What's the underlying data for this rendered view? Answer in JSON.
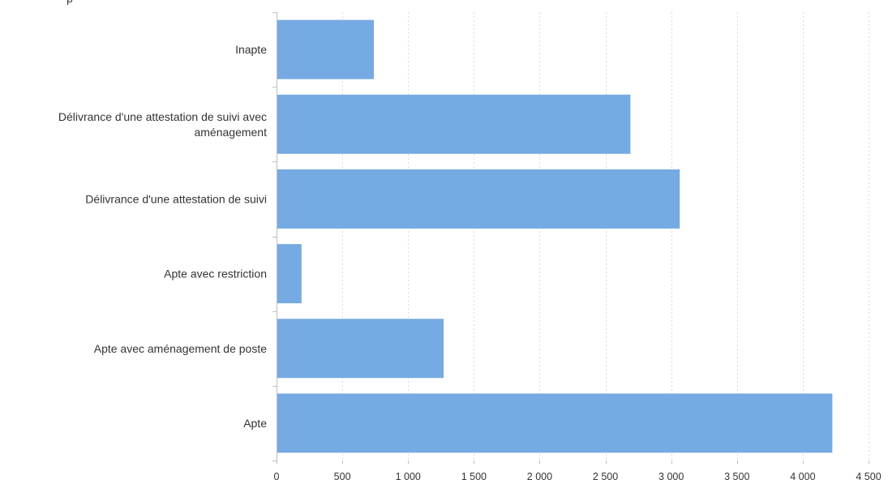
{
  "page": {
    "clipped_top_text": "p"
  },
  "chart_data": {
    "type": "bar",
    "orientation": "horizontal",
    "title": "",
    "xlabel": "",
    "ylabel": "",
    "categories": [
      [
        "Inapte"
      ],
      [
        "Délivrance d'une attestation de suivi avec",
        "aménagement"
      ],
      [
        "Délivrance d'une attestation de suivi"
      ],
      [
        "Apte avec restriction"
      ],
      [
        "Apte avec aménagement de poste"
      ],
      [
        "Apte"
      ]
    ],
    "values": [
      740,
      2690,
      3065,
      190,
      1270,
      4225
    ],
    "xlim": [
      0,
      4500
    ],
    "xticks": [
      0,
      500,
      1000,
      1500,
      2000,
      2500,
      3000,
      3500,
      4000,
      4500
    ],
    "xtick_labels": [
      "0",
      "500",
      "1 000",
      "1 500",
      "2 000",
      "2 500",
      "3 000",
      "3 500",
      "4 000",
      "4 500"
    ],
    "grid": "vertical dashed",
    "legend": "none",
    "colors": {
      "bar": "#76aae2",
      "grid": "#d9d9d9",
      "axis": "#bfbfbf",
      "text": "#333333"
    }
  }
}
